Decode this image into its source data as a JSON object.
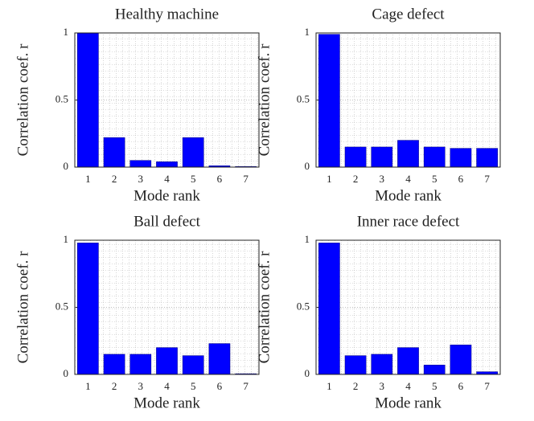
{
  "chart_data": [
    {
      "type": "bar",
      "title": "Healthy machine",
      "xlabel": "Mode rank",
      "ylabel": "Correlation coef. r",
      "categories": [
        "1",
        "2",
        "3",
        "4",
        "5",
        "6",
        "7"
      ],
      "values": [
        1,
        0.22,
        0.05,
        0.04,
        0.22,
        0.01,
        0.005
      ],
      "color": "#0000ff",
      "ylim": [
        0,
        1
      ],
      "yticks": [
        0,
        0.5,
        1
      ],
      "grid": true
    },
    {
      "type": "bar",
      "title": "Cage defect",
      "xlabel": "Mode rank",
      "ylabel": "Correlation coef. r",
      "categories": [
        "1",
        "2",
        "3",
        "4",
        "5",
        "6",
        "7"
      ],
      "values": [
        0.99,
        0.15,
        0.15,
        0.2,
        0.15,
        0.14,
        0.14
      ],
      "color": "#0000ff",
      "ylim": [
        0,
        1
      ],
      "yticks": [
        0,
        0.5,
        1
      ],
      "grid": true
    },
    {
      "type": "bar",
      "title": "Ball defect",
      "xlabel": "Mode rank",
      "ylabel": "Correlation coef. r",
      "categories": [
        "1",
        "2",
        "3",
        "4",
        "5",
        "6",
        "7"
      ],
      "values": [
        0.98,
        0.15,
        0.15,
        0.2,
        0.14,
        0.23,
        0.005
      ],
      "color": "#0000ff",
      "ylim": [
        0,
        1
      ],
      "yticks": [
        0,
        0.5,
        1
      ],
      "grid": true
    },
    {
      "type": "bar",
      "title": "Inner race defect",
      "xlabel": "Mode rank",
      "ylabel": "Correlation coef. r",
      "categories": [
        "1",
        "2",
        "3",
        "4",
        "5",
        "6",
        "7"
      ],
      "values": [
        0.98,
        0.14,
        0.15,
        0.2,
        0.07,
        0.22,
        0.02
      ],
      "color": "#0000ff",
      "ylim": [
        0,
        1
      ],
      "yticks": [
        0,
        0.5,
        1
      ],
      "grid": true
    }
  ]
}
